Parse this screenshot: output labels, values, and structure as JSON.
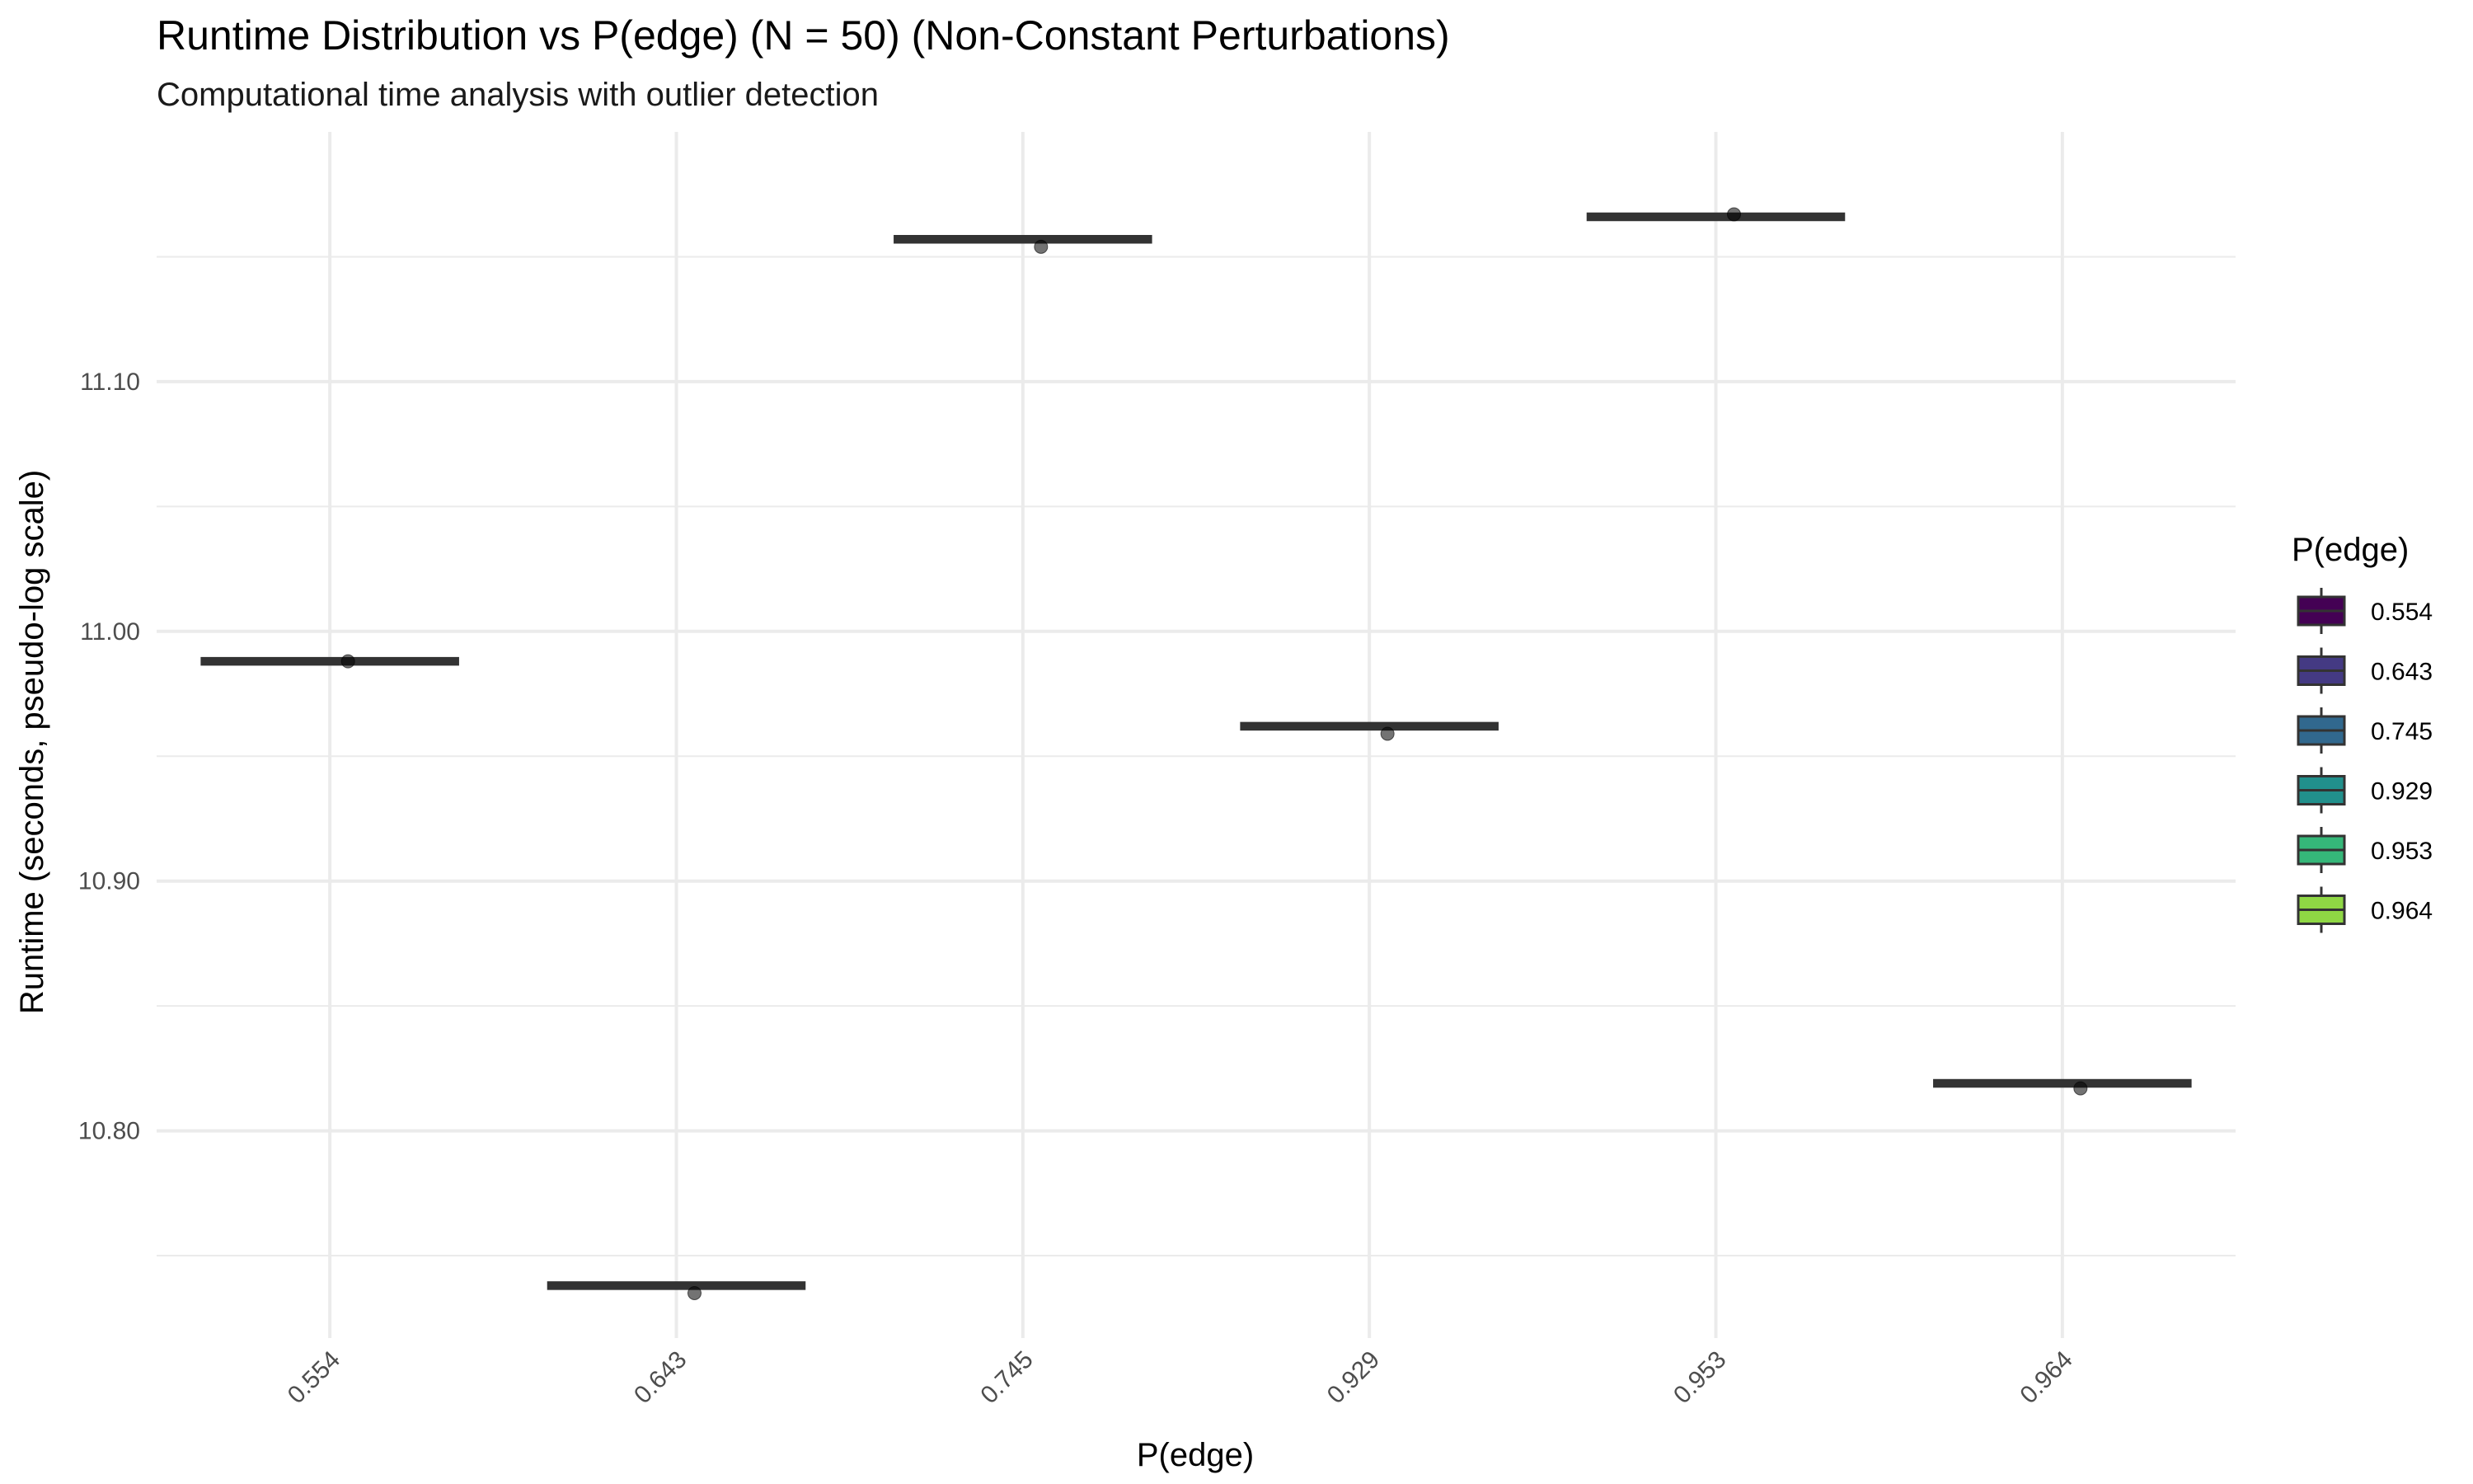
{
  "chart_data": {
    "type": "box",
    "title": "Runtime Distribution vs P(edge) (N = 50) (Non-Constant Perturbations)",
    "subtitle": "Computational time analysis with outlier detection",
    "xlabel": "P(edge)",
    "ylabel": "Runtime (seconds, pseudo-log scale)",
    "categories": [
      "0.554",
      "0.643",
      "0.745",
      "0.929",
      "0.953",
      "0.964"
    ],
    "medians": [
      10.988,
      10.738,
      11.157,
      10.962,
      11.166,
      10.819
    ],
    "points": [
      10.988,
      10.735,
      11.154,
      10.959,
      11.167,
      10.817
    ],
    "ylim": [
      10.717,
      11.2
    ],
    "yticks": [
      10.8,
      10.9,
      11.0,
      11.1
    ],
    "ytick_labels": [
      "10.80",
      "10.90",
      "11.00",
      "11.10"
    ],
    "grid": true,
    "legend": {
      "title": "P(edge)",
      "position": "right",
      "entries": [
        "0.554",
        "0.643",
        "0.745",
        "0.929",
        "0.953",
        "0.964"
      ]
    },
    "colors": [
      "#440154",
      "#443A83",
      "#31688E",
      "#21908C",
      "#35B779",
      "#8FD744"
    ]
  }
}
